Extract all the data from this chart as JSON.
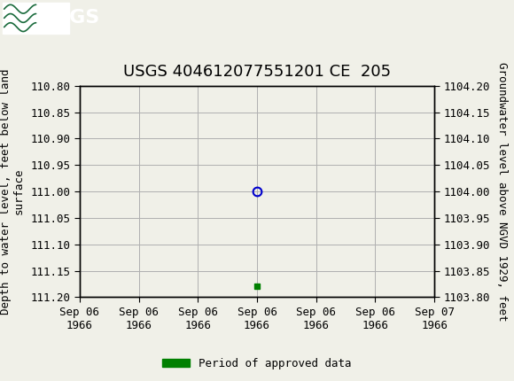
{
  "title": "USGS 404612077551201 CE  205",
  "ylabel_left": "Depth to water level, feet below land\nsurface",
  "ylabel_right": "Groundwater level above NGVD 1929, feet",
  "ylim_left": [
    110.8,
    111.2
  ],
  "ylim_right_top": 1104.2,
  "ylim_right_bottom": 1103.8,
  "yticks_left": [
    110.8,
    110.85,
    110.9,
    110.95,
    111.0,
    111.05,
    111.1,
    111.15,
    111.2
  ],
  "yticks_right": [
    1104.2,
    1104.15,
    1104.1,
    1104.05,
    1104.0,
    1103.95,
    1103.9,
    1103.85,
    1103.8
  ],
  "xtick_labels": [
    "Sep 06\n1966",
    "Sep 06\n1966",
    "Sep 06\n1966",
    "Sep 06\n1966",
    "Sep 06\n1966",
    "Sep 06\n1966",
    "Sep 07\n1966"
  ],
  "point_x": 3.0,
  "point_y": 111.0,
  "point_color": "#0000cc",
  "green_square_x": 3.0,
  "green_square_y": 111.18,
  "green_color": "#008000",
  "header_color": "#1a6b3c",
  "background_color": "#f0f0e8",
  "plot_bg_color": "#f0f0e8",
  "grid_color": "#b0b0b0",
  "tick_fontsize": 9,
  "axis_label_fontsize": 9,
  "title_fontsize": 13,
  "legend_label": "Period of approved data",
  "xmin": 0,
  "xmax": 6
}
